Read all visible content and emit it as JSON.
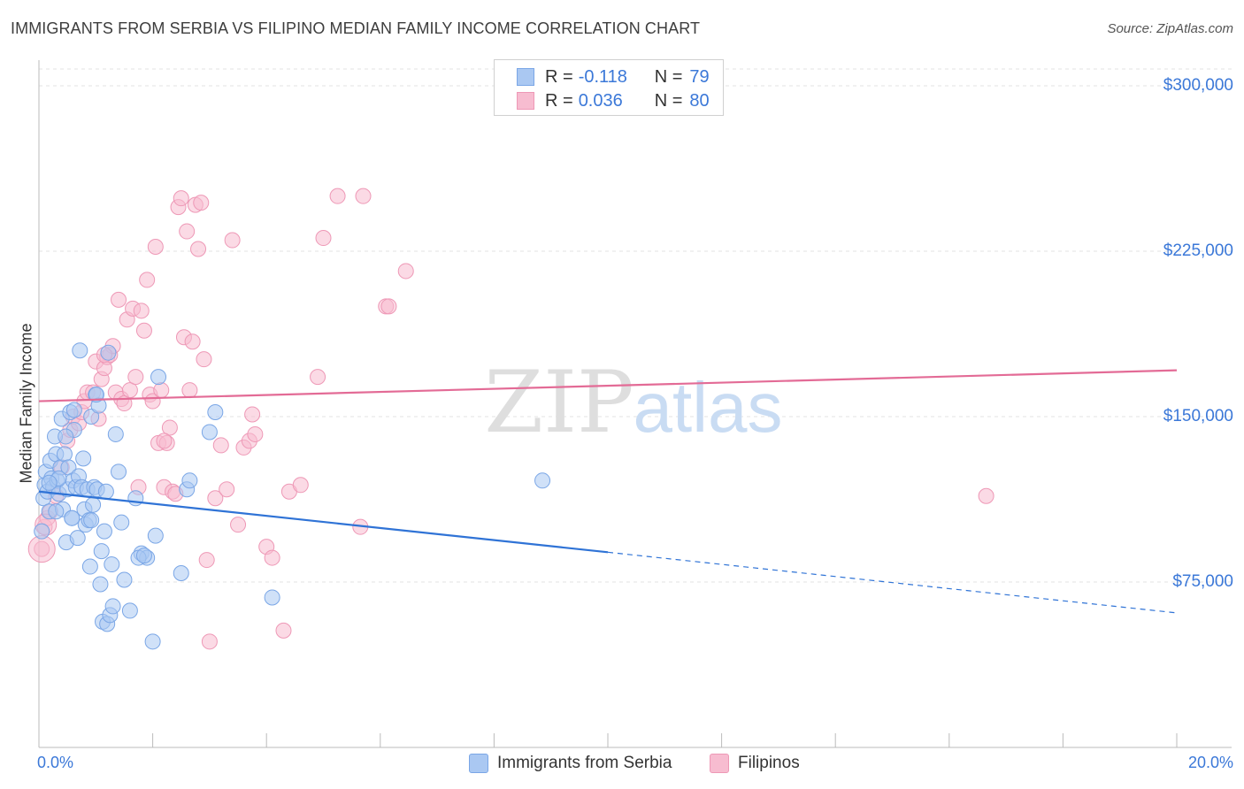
{
  "header": {
    "title": "IMMIGRANTS FROM SERBIA VS FILIPINO MEDIAN FAMILY INCOME CORRELATION CHART",
    "source": "Source: ZipAtlas.com"
  },
  "watermark": {
    "zip": "ZIP",
    "atlas": "atlas"
  },
  "legend_top": {
    "series1": {
      "r_label": "R =",
      "r_value": "-0.118",
      "n_label": "N =",
      "n_value": "79"
    },
    "series2": {
      "r_label": "R =",
      "r_value": "0.036",
      "n_label": "N =",
      "n_value": "80"
    }
  },
  "legend_bottom": {
    "series1": "Immigrants from Serbia",
    "series2": "Filipinos"
  },
  "colors": {
    "serbia_fill": "#aac8f2",
    "serbia_stroke": "#7aa6e6",
    "serbia_line": "#2f73d6",
    "filipino_fill": "#f7bcd0",
    "filipino_stroke": "#ee98b6",
    "filipino_line": "#e36b96",
    "tick_text": "#3b78d8",
    "grid": "#e3e3e3"
  },
  "chart_data": {
    "type": "scatter",
    "title": "IMMIGRANTS FROM SERBIA VS FILIPINO MEDIAN FAMILY INCOME CORRELATION CHART",
    "xlabel": "",
    "ylabel": "Median Family Income",
    "xlim": [
      0,
      20
    ],
    "ylim": [
      0,
      315000
    ],
    "x_tick_labels": [
      "0.0%",
      "20.0%"
    ],
    "y_ticks": [
      75000,
      150000,
      225000,
      300000
    ],
    "y_tick_labels": [
      "$75,000",
      "$150,000",
      "$225,000",
      "$300,000"
    ],
    "grid": true,
    "legend_position": "top-center",
    "series": [
      {
        "name": "Immigrants from Serbia",
        "r": -0.118,
        "n": 79,
        "trend": {
          "x_start": 0,
          "y_start": 116000,
          "x_solid_end": 10,
          "x_end": 20,
          "y_end": 61000
        },
        "points": [
          [
            0.05,
            98000
          ],
          [
            0.08,
            113000
          ],
          [
            0.1,
            119000
          ],
          [
            0.12,
            125000
          ],
          [
            0.15,
            116000
          ],
          [
            0.18,
            107000
          ],
          [
            0.2,
            130000
          ],
          [
            0.22,
            122000
          ],
          [
            0.25,
            118000
          ],
          [
            0.28,
            141000
          ],
          [
            0.3,
            133000
          ],
          [
            0.32,
            121000
          ],
          [
            0.35,
            115000
          ],
          [
            0.38,
            127000
          ],
          [
            0.4,
            149000
          ],
          [
            0.42,
            108000
          ],
          [
            0.45,
            133000
          ],
          [
            0.48,
            93000
          ],
          [
            0.5,
            117000
          ],
          [
            0.52,
            127000
          ],
          [
            0.55,
            152000
          ],
          [
            0.58,
            104000
          ],
          [
            0.6,
            121000
          ],
          [
            0.62,
            144000
          ],
          [
            0.65,
            118000
          ],
          [
            0.68,
            95000
          ],
          [
            0.7,
            123000
          ],
          [
            0.72,
            180000
          ],
          [
            0.75,
            118000
          ],
          [
            0.78,
            131000
          ],
          [
            0.8,
            108000
          ],
          [
            0.82,
            101000
          ],
          [
            0.85,
            117000
          ],
          [
            0.88,
            103000
          ],
          [
            0.9,
            82000
          ],
          [
            0.92,
            150000
          ],
          [
            0.95,
            110000
          ],
          [
            0.97,
            118000
          ],
          [
            1.0,
            160000
          ],
          [
            1.02,
            117000
          ],
          [
            1.05,
            155000
          ],
          [
            1.08,
            74000
          ],
          [
            1.1,
            89000
          ],
          [
            1.12,
            57000
          ],
          [
            1.15,
            98000
          ],
          [
            1.18,
            116000
          ],
          [
            1.2,
            56000
          ],
          [
            1.22,
            179000
          ],
          [
            1.25,
            60000
          ],
          [
            1.28,
            83000
          ],
          [
            1.3,
            64000
          ],
          [
            1.35,
            142000
          ],
          [
            1.4,
            125000
          ],
          [
            1.45,
            102000
          ],
          [
            1.5,
            76000
          ],
          [
            1.6,
            62000
          ],
          [
            1.7,
            113000
          ],
          [
            1.8,
            88000
          ],
          [
            1.9,
            86000
          ],
          [
            2.0,
            48000
          ],
          [
            2.05,
            96000
          ],
          [
            2.1,
            168000
          ],
          [
            2.5,
            79000
          ],
          [
            2.6,
            117000
          ],
          [
            2.65,
            121000
          ],
          [
            3.0,
            143000
          ],
          [
            3.1,
            152000
          ],
          [
            4.1,
            68000
          ],
          [
            8.85,
            121000
          ],
          [
            1.75,
            86000
          ],
          [
            0.58,
            104000
          ],
          [
            0.35,
            122000
          ],
          [
            0.62,
            153000
          ],
          [
            0.92,
            103000
          ],
          [
            1.01,
            160000
          ],
          [
            0.3,
            107000
          ],
          [
            0.18,
            120000
          ],
          [
            0.47,
            141000
          ],
          [
            1.85,
            87000
          ]
        ]
      },
      {
        "name": "Filipinos",
        "r": 0.036,
        "n": 80,
        "trend": {
          "x_start": 0,
          "y_start": 157000,
          "x_end": 20,
          "y_end": 171000
        },
        "points": [
          [
            0.05,
            90000
          ],
          [
            0.1,
            100000
          ],
          [
            0.15,
            104000
          ],
          [
            0.2,
            107000
          ],
          [
            0.3,
            114000
          ],
          [
            0.4,
            127000
          ],
          [
            0.5,
            139000
          ],
          [
            0.55,
            144000
          ],
          [
            0.6,
            150000
          ],
          [
            0.7,
            147000
          ],
          [
            0.75,
            152000
          ],
          [
            0.8,
            157000
          ],
          [
            0.85,
            161000
          ],
          [
            0.95,
            161000
          ],
          [
            1.0,
            175000
          ],
          [
            1.05,
            149000
          ],
          [
            1.1,
            167000
          ],
          [
            1.15,
            172000
          ],
          [
            1.2,
            177000
          ],
          [
            1.25,
            178000
          ],
          [
            1.3,
            182000
          ],
          [
            1.35,
            161000
          ],
          [
            1.4,
            203000
          ],
          [
            1.45,
            158000
          ],
          [
            1.5,
            156000
          ],
          [
            1.55,
            194000
          ],
          [
            1.6,
            162000
          ],
          [
            1.65,
            199000
          ],
          [
            1.7,
            168000
          ],
          [
            1.75,
            118000
          ],
          [
            1.8,
            198000
          ],
          [
            1.85,
            189000
          ],
          [
            1.9,
            212000
          ],
          [
            1.95,
            160000
          ],
          [
            2.0,
            157000
          ],
          [
            2.05,
            227000
          ],
          [
            2.1,
            138000
          ],
          [
            2.15,
            162000
          ],
          [
            2.2,
            118000
          ],
          [
            2.25,
            138000
          ],
          [
            2.3,
            145000
          ],
          [
            2.35,
            116000
          ],
          [
            2.4,
            115000
          ],
          [
            2.45,
            245000
          ],
          [
            2.5,
            249000
          ],
          [
            2.55,
            186000
          ],
          [
            2.6,
            234000
          ],
          [
            2.65,
            162000
          ],
          [
            2.7,
            184000
          ],
          [
            2.75,
            246000
          ],
          [
            2.8,
            226000
          ],
          [
            2.85,
            247000
          ],
          [
            2.9,
            176000
          ],
          [
            2.95,
            85000
          ],
          [
            3.0,
            48000
          ],
          [
            3.1,
            113000
          ],
          [
            3.2,
            137000
          ],
          [
            3.3,
            117000
          ],
          [
            3.4,
            230000
          ],
          [
            3.5,
            101000
          ],
          [
            3.6,
            136000
          ],
          [
            3.7,
            139000
          ],
          [
            3.75,
            151000
          ],
          [
            3.8,
            142000
          ],
          [
            4.0,
            91000
          ],
          [
            4.1,
            86000
          ],
          [
            4.3,
            53000
          ],
          [
            4.4,
            116000
          ],
          [
            4.6,
            119000
          ],
          [
            4.9,
            168000
          ],
          [
            5.0,
            231000
          ],
          [
            5.25,
            250000
          ],
          [
            5.65,
            100000
          ],
          [
            5.7,
            250000
          ],
          [
            6.1,
            200000
          ],
          [
            6.15,
            200000
          ],
          [
            6.45,
            216000
          ],
          [
            16.65,
            114000
          ],
          [
            2.2,
            139000
          ],
          [
            1.15,
            178000
          ]
        ]
      }
    ]
  }
}
